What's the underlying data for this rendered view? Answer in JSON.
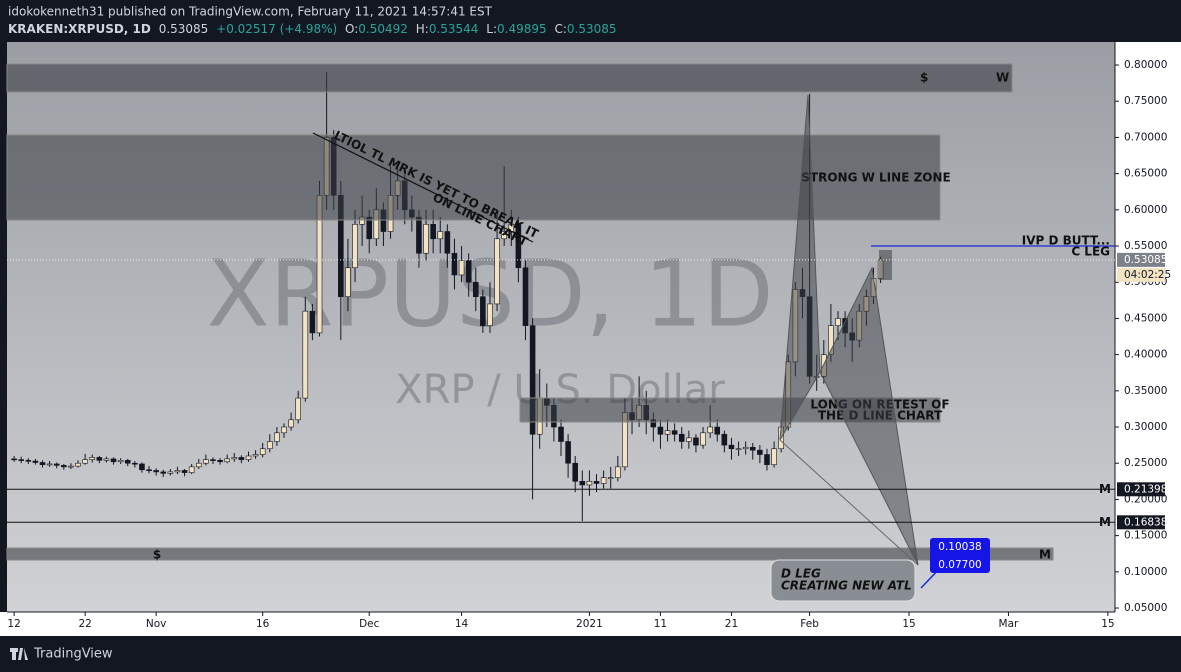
{
  "header": {
    "publisher": "idokokenneth31 published on TradingView.com, February 11, 2021 14:57:41 EST",
    "symbol": "KRAKEN:XRPUSD, 1D",
    "last": "0.53085",
    "change": "+0.02517 (+4.98%)",
    "o_label": "O:",
    "open": "0.50492",
    "h_label": "H:",
    "high": "0.53544",
    "l_label": "L:",
    "low": "0.49895",
    "c_label": "C:",
    "close": "0.53085"
  },
  "chart_data": {
    "type": "candlestick",
    "watermark": "XRPUSD, 1D",
    "watermark_sub": "XRP / U.S. Dollar",
    "xlim": [
      -1,
      155
    ],
    "ylim": [
      0.0445,
      0.8318
    ],
    "xticks": [
      {
        "value": 0,
        "label": "12"
      },
      {
        "value": 10,
        "label": "22"
      },
      {
        "value": 20,
        "label": "Nov"
      },
      {
        "value": 35,
        "label": "16"
      },
      {
        "value": 50,
        "label": "Dec"
      },
      {
        "value": 63,
        "label": "14"
      },
      {
        "value": 81,
        "label": "2021"
      },
      {
        "value": 91,
        "label": "11"
      },
      {
        "value": 101,
        "label": "21"
      },
      {
        "value": 112,
        "label": "Feb"
      },
      {
        "value": 126,
        "label": "15"
      },
      {
        "value": 140,
        "label": "Mar"
      },
      {
        "value": 154,
        "label": "15"
      }
    ],
    "yticks": [
      {
        "value": 0.05,
        "label": "0.05000"
      },
      {
        "value": 0.1,
        "label": "0.10000"
      },
      {
        "value": 0.15,
        "label": "0.15000"
      },
      {
        "value": 0.2,
        "label": "0.20000"
      },
      {
        "value": 0.25,
        "label": "0.25000"
      },
      {
        "value": 0.3,
        "label": "0.30000"
      },
      {
        "value": 0.35,
        "label": "0.35000"
      },
      {
        "value": 0.4,
        "label": "0.40000"
      },
      {
        "value": 0.45,
        "label": "0.45000"
      },
      {
        "value": 0.5,
        "label": "0.50000"
      },
      {
        "value": 0.55,
        "label": "0.55000"
      },
      {
        "value": 0.6,
        "label": "0.60000"
      },
      {
        "value": 0.65,
        "label": "0.65000"
      },
      {
        "value": 0.7,
        "label": "0.70000"
      },
      {
        "value": 0.75,
        "label": "0.75000"
      },
      {
        "value": 0.8,
        "label": "0.80000"
      }
    ],
    "up_color": "#f3e3c2",
    "down_color": "#131722",
    "x": [
      0,
      1,
      2,
      3,
      4,
      5,
      6,
      7,
      8,
      9,
      10,
      11,
      12,
      13,
      14,
      15,
      16,
      17,
      18,
      19,
      20,
      21,
      22,
      23,
      24,
      25,
      26,
      27,
      28,
      29,
      30,
      31,
      32,
      33,
      34,
      35,
      36,
      37,
      38,
      39,
      40,
      41,
      42,
      43,
      44,
      45,
      46,
      47,
      48,
      49,
      50,
      51,
      52,
      53,
      54,
      55,
      56,
      57,
      58,
      59,
      60,
      61,
      62,
      63,
      64,
      65,
      66,
      67,
      68,
      69,
      70,
      71,
      72,
      73,
      74,
      75,
      76,
      77,
      78,
      79,
      80,
      81,
      82,
      83,
      84,
      85,
      86,
      87,
      88,
      89,
      90,
      91,
      92,
      93,
      94,
      95,
      96,
      97,
      98,
      99,
      100,
      101,
      102,
      103,
      104,
      105,
      106,
      107,
      108,
      109,
      110,
      111,
      112,
      113,
      114,
      115,
      116,
      117,
      118,
      119,
      120,
      121,
      122
    ],
    "ohlc": [
      [
        0.256,
        0.26,
        0.252,
        0.255
      ],
      [
        0.255,
        0.259,
        0.25,
        0.254
      ],
      [
        0.254,
        0.257,
        0.249,
        0.253
      ],
      [
        0.253,
        0.256,
        0.248,
        0.251
      ],
      [
        0.251,
        0.254,
        0.244,
        0.248
      ],
      [
        0.248,
        0.253,
        0.245,
        0.249
      ],
      [
        0.249,
        0.251,
        0.243,
        0.247
      ],
      [
        0.247,
        0.249,
        0.241,
        0.245
      ],
      [
        0.245,
        0.25,
        0.242,
        0.246
      ],
      [
        0.246,
        0.254,
        0.244,
        0.25
      ],
      [
        0.25,
        0.263,
        0.248,
        0.255
      ],
      [
        0.255,
        0.262,
        0.251,
        0.258
      ],
      [
        0.258,
        0.26,
        0.25,
        0.254
      ],
      [
        0.254,
        0.259,
        0.251,
        0.256
      ],
      [
        0.256,
        0.258,
        0.248,
        0.252
      ],
      [
        0.252,
        0.257,
        0.249,
        0.254
      ],
      [
        0.254,
        0.256,
        0.246,
        0.25
      ],
      [
        0.25,
        0.253,
        0.244,
        0.249
      ],
      [
        0.249,
        0.251,
        0.237,
        0.241
      ],
      [
        0.241,
        0.246,
        0.236,
        0.24
      ],
      [
        0.24,
        0.243,
        0.233,
        0.238
      ],
      [
        0.238,
        0.241,
        0.231,
        0.236
      ],
      [
        0.236,
        0.242,
        0.233,
        0.238
      ],
      [
        0.238,
        0.245,
        0.235,
        0.24
      ],
      [
        0.24,
        0.242,
        0.232,
        0.237
      ],
      [
        0.237,
        0.249,
        0.235,
        0.245
      ],
      [
        0.245,
        0.256,
        0.242,
        0.25
      ],
      [
        0.25,
        0.262,
        0.247,
        0.255
      ],
      [
        0.255,
        0.258,
        0.249,
        0.254
      ],
      [
        0.254,
        0.257,
        0.248,
        0.252
      ],
      [
        0.252,
        0.262,
        0.25,
        0.256
      ],
      [
        0.256,
        0.264,
        0.252,
        0.258
      ],
      [
        0.258,
        0.261,
        0.25,
        0.255
      ],
      [
        0.255,
        0.266,
        0.252,
        0.26
      ],
      [
        0.26,
        0.268,
        0.256,
        0.262
      ],
      [
        0.262,
        0.278,
        0.258,
        0.27
      ],
      [
        0.27,
        0.29,
        0.265,
        0.28
      ],
      [
        0.28,
        0.3,
        0.274,
        0.292
      ],
      [
        0.292,
        0.305,
        0.285,
        0.3
      ],
      [
        0.3,
        0.32,
        0.295,
        0.31
      ],
      [
        0.31,
        0.35,
        0.305,
        0.34
      ],
      [
        0.34,
        0.48,
        0.335,
        0.46
      ],
      [
        0.46,
        0.47,
        0.42,
        0.43
      ],
      [
        0.43,
        0.64,
        0.425,
        0.62
      ],
      [
        0.62,
        0.79,
        0.6,
        0.7
      ],
      [
        0.7,
        0.71,
        0.6,
        0.62
      ],
      [
        0.62,
        0.64,
        0.42,
        0.48
      ],
      [
        0.48,
        0.56,
        0.46,
        0.52
      ],
      [
        0.52,
        0.6,
        0.5,
        0.58
      ],
      [
        0.58,
        0.62,
        0.55,
        0.59
      ],
      [
        0.59,
        0.6,
        0.54,
        0.56
      ],
      [
        0.56,
        0.63,
        0.55,
        0.6
      ],
      [
        0.6,
        0.61,
        0.55,
        0.57
      ],
      [
        0.57,
        0.66,
        0.56,
        0.62
      ],
      [
        0.62,
        0.66,
        0.6,
        0.64
      ],
      [
        0.64,
        0.65,
        0.58,
        0.6
      ],
      [
        0.6,
        0.62,
        0.57,
        0.59
      ],
      [
        0.59,
        0.6,
        0.52,
        0.54
      ],
      [
        0.54,
        0.6,
        0.53,
        0.58
      ],
      [
        0.58,
        0.6,
        0.54,
        0.56
      ],
      [
        0.56,
        0.59,
        0.54,
        0.57
      ],
      [
        0.57,
        0.58,
        0.52,
        0.54
      ],
      [
        0.54,
        0.56,
        0.49,
        0.51
      ],
      [
        0.51,
        0.55,
        0.5,
        0.53
      ],
      [
        0.53,
        0.54,
        0.48,
        0.5
      ],
      [
        0.5,
        0.52,
        0.46,
        0.48
      ],
      [
        0.48,
        0.49,
        0.43,
        0.44
      ],
      [
        0.44,
        0.5,
        0.43,
        0.47
      ],
      [
        0.47,
        0.6,
        0.46,
        0.56
      ],
      [
        0.56,
        0.66,
        0.55,
        0.57
      ],
      [
        0.57,
        0.6,
        0.55,
        0.58
      ],
      [
        0.58,
        0.59,
        0.5,
        0.52
      ],
      [
        0.52,
        0.53,
        0.42,
        0.44
      ],
      [
        0.44,
        0.45,
        0.2,
        0.29
      ],
      [
        0.29,
        0.38,
        0.27,
        0.34
      ],
      [
        0.34,
        0.36,
        0.3,
        0.33
      ],
      [
        0.33,
        0.34,
        0.28,
        0.3
      ],
      [
        0.3,
        0.31,
        0.26,
        0.28
      ],
      [
        0.28,
        0.29,
        0.23,
        0.25
      ],
      [
        0.25,
        0.26,
        0.21,
        0.225
      ],
      [
        0.225,
        0.24,
        0.17,
        0.22
      ],
      [
        0.22,
        0.24,
        0.205,
        0.225
      ],
      [
        0.225,
        0.235,
        0.21,
        0.222
      ],
      [
        0.222,
        0.24,
        0.215,
        0.23
      ],
      [
        0.23,
        0.245,
        0.215,
        0.23
      ],
      [
        0.23,
        0.26,
        0.225,
        0.245
      ],
      [
        0.245,
        0.34,
        0.24,
        0.32
      ],
      [
        0.32,
        0.34,
        0.29,
        0.31
      ],
      [
        0.31,
        0.37,
        0.3,
        0.33
      ],
      [
        0.33,
        0.35,
        0.29,
        0.31
      ],
      [
        0.31,
        0.32,
        0.28,
        0.3
      ],
      [
        0.3,
        0.31,
        0.27,
        0.29
      ],
      [
        0.29,
        0.31,
        0.28,
        0.295
      ],
      [
        0.295,
        0.305,
        0.28,
        0.29
      ],
      [
        0.29,
        0.3,
        0.27,
        0.28
      ],
      [
        0.28,
        0.295,
        0.27,
        0.285
      ],
      [
        0.285,
        0.29,
        0.265,
        0.275
      ],
      [
        0.275,
        0.3,
        0.27,
        0.292
      ],
      [
        0.292,
        0.33,
        0.285,
        0.3
      ],
      [
        0.3,
        0.31,
        0.28,
        0.29
      ],
      [
        0.29,
        0.295,
        0.265,
        0.275
      ],
      [
        0.275,
        0.285,
        0.255,
        0.27
      ],
      [
        0.27,
        0.28,
        0.26,
        0.27
      ],
      [
        0.27,
        0.28,
        0.262,
        0.272
      ],
      [
        0.272,
        0.278,
        0.255,
        0.268
      ],
      [
        0.268,
        0.275,
        0.25,
        0.262
      ],
      [
        0.262,
        0.27,
        0.24,
        0.248
      ],
      [
        0.248,
        0.28,
        0.244,
        0.27
      ],
      [
        0.27,
        0.31,
        0.265,
        0.3
      ],
      [
        0.3,
        0.4,
        0.295,
        0.39
      ],
      [
        0.39,
        0.5,
        0.37,
        0.49
      ],
      [
        0.49,
        0.52,
        0.45,
        0.48
      ],
      [
        0.48,
        0.76,
        0.36,
        0.37
      ],
      [
        0.37,
        0.4,
        0.35,
        0.37
      ],
      [
        0.37,
        0.42,
        0.36,
        0.4
      ],
      [
        0.4,
        0.47,
        0.39,
        0.44
      ],
      [
        0.44,
        0.46,
        0.42,
        0.45
      ],
      [
        0.45,
        0.46,
        0.41,
        0.43
      ],
      [
        0.43,
        0.45,
        0.39,
        0.42
      ],
      [
        0.42,
        0.47,
        0.41,
        0.46
      ],
      [
        0.46,
        0.49,
        0.44,
        0.48
      ],
      [
        0.48,
        0.52,
        0.47,
        0.505
      ],
      [
        0.50492,
        0.53544,
        0.49895,
        0.53085
      ]
    ],
    "levels": [
      {
        "value": 0.21398,
        "label": "M"
      },
      {
        "value": 0.16838,
        "label": "M"
      }
    ],
    "countdown": "04:02:25"
  },
  "annotations": {
    "top_zone_left": "$",
    "top_zone_right": "W",
    "strong_zone": "STRONG W LINE ZONE",
    "trendline": [
      "LTIOL TL MRK IS YET TO BREAK IT",
      "ON LINE CHART"
    ],
    "ivp": "IVP D BUTT...",
    "c_leg": "C LEG",
    "long_retest": [
      "LONG ON RETEST OF",
      "THE D LINE CHART"
    ],
    "bottom_zone_left": "$",
    "bottom_zone_right": "M",
    "blue_box": [
      "0.10038",
      "0.07700"
    ],
    "d_leg": [
      "D LEG",
      "CREATING NEW ATL"
    ]
  },
  "footer": {
    "brand": "TradingView"
  }
}
